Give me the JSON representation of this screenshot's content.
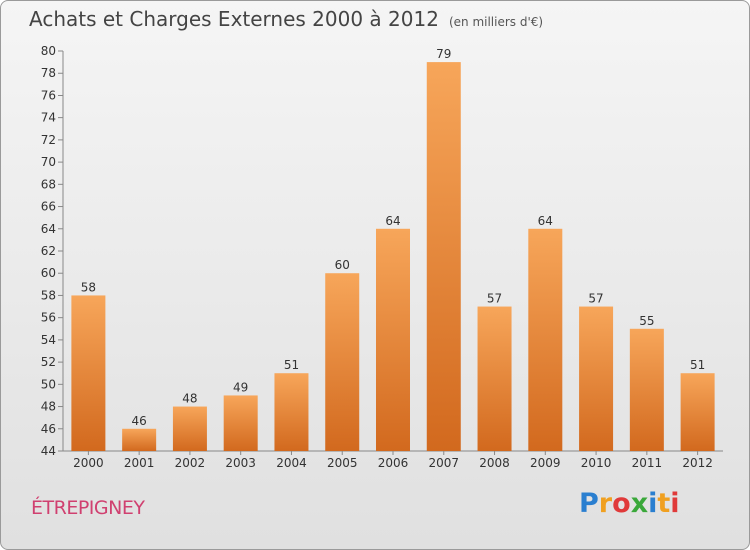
{
  "header": {
    "title": "Achats et Charges Externes 2000 à 2012",
    "subtitle": "(en milliers d'€)"
  },
  "commune": "ÉTREPIGNEY",
  "logo": {
    "text": "Proxiti",
    "letters": [
      {
        "ch": "P",
        "color": "#2a7fd0"
      },
      {
        "ch": "r",
        "color": "#f0a020"
      },
      {
        "ch": "o",
        "color": "#e03a3a"
      },
      {
        "ch": "x",
        "color": "#3aa83a"
      },
      {
        "ch": "i",
        "color": "#2a7fd0"
      },
      {
        "ch": "t",
        "color": "#f0a020"
      },
      {
        "ch": "i",
        "color": "#e03a3a"
      }
    ]
  },
  "chart_data": {
    "type": "bar",
    "title": "Achats et Charges Externes 2000 à 2012",
    "subtitle": "(en milliers d'€)",
    "categories": [
      "2000",
      "2001",
      "2002",
      "2003",
      "2004",
      "2005",
      "2006",
      "2007",
      "2008",
      "2009",
      "2010",
      "2011",
      "2012"
    ],
    "values": [
      58,
      46,
      48,
      49,
      51,
      60,
      64,
      79,
      57,
      64,
      57,
      55,
      51
    ],
    "ylim": [
      44,
      80
    ],
    "yticks": [
      44,
      46,
      48,
      50,
      52,
      54,
      56,
      58,
      60,
      62,
      64,
      66,
      68,
      70,
      72,
      74,
      76,
      78,
      80
    ],
    "xlabel": "",
    "ylabel": "",
    "grid": false,
    "bar_color_top": "#f7a65a",
    "bar_color_bottom": "#d2691e"
  }
}
